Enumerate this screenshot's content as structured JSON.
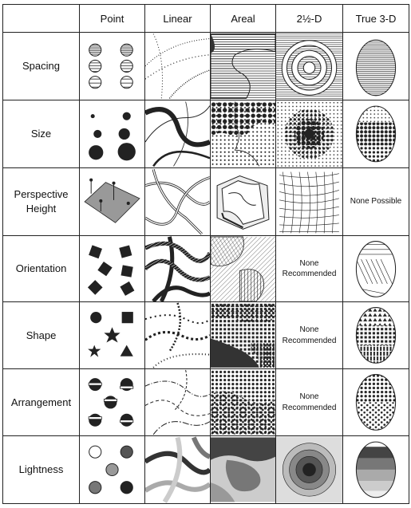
{
  "columns": [
    "",
    "Point",
    "Linear",
    "Areal",
    "2½-D",
    "True 3-D"
  ],
  "rows": [
    {
      "label": "Spacing"
    },
    {
      "label": "Size"
    },
    {
      "label": "Perspective Height"
    },
    {
      "label": "Orientation"
    },
    {
      "label": "Shape"
    },
    {
      "label": "Arrangement"
    },
    {
      "label": "Lightness"
    }
  ],
  "notes": {
    "none_possible": "None Possible",
    "none_recommended": "None Recommended"
  },
  "colors": {
    "ink": "#222222",
    "gray_light": "#c8c8c8",
    "gray_mid": "#8a8a8a",
    "gray_dark": "#555555"
  }
}
